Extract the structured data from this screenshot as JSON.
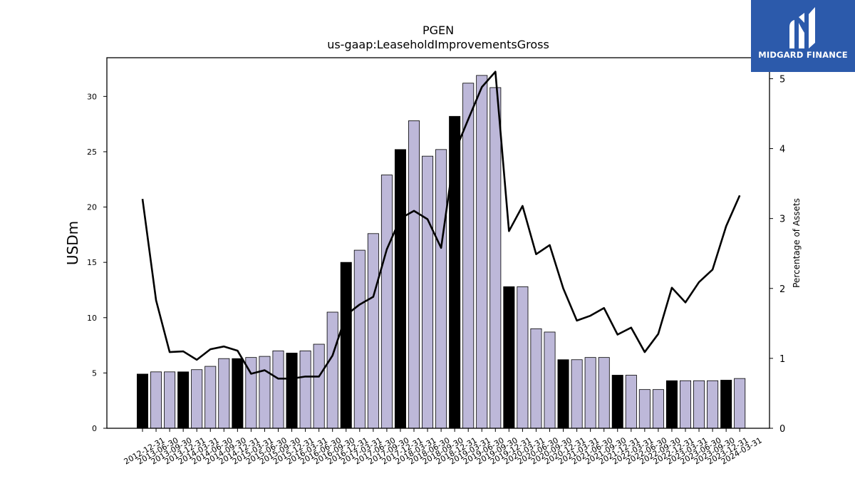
{
  "logo": {
    "name": "MIDGARD FINANCE",
    "colors": {
      "background": "#2c5aab",
      "foreground": "#ffffff"
    }
  },
  "chart_data": {
    "type": "bar",
    "title": "PGEN",
    "subtitle": "us-gaap:LeaseholdImprovementsGross",
    "ylabel": "USDm",
    "y2label": "Percentage of Assets",
    "ylim": [
      0,
      33.5
    ],
    "y2lim": [
      0,
      5.3
    ],
    "yticks": [
      0,
      5,
      10,
      15,
      20,
      25,
      30
    ],
    "y2ticks": [
      0,
      1,
      2,
      3,
      4,
      5
    ],
    "categories": [
      "2012-12-31",
      "2013-06-30",
      "2013-09-30",
      "2013-12-31",
      "2014-03-31",
      "2014-06-30",
      "2014-09-30",
      "2014-12-31",
      "2015-03-31",
      "2015-06-30",
      "2015-09-30",
      "2015-12-31",
      "2016-03-31",
      "2016-06-30",
      "2016-09-30",
      "2016-12-31",
      "2017-03-31",
      "2017-06-30",
      "2017-09-30",
      "2017-12-31",
      "2018-03-31",
      "2018-06-30",
      "2018-09-30",
      "2018-12-31",
      "2019-03-31",
      "2019-06-30",
      "2019-09-30",
      "2019-12-31",
      "2020-03-31",
      "2020-06-30",
      "2020-09-30",
      "2020-12-31",
      "2021-03-31",
      "2021-06-30",
      "2021-09-30",
      "2021-12-31",
      "2022-03-31",
      "2022-06-30",
      "2022-09-30",
      "2022-12-31",
      "2023-03-31",
      "2023-06-30",
      "2023-09-30",
      "2023-12-31",
      "2024-03-31"
    ],
    "series": [
      {
        "type": "bar",
        "axis": "left",
        "values": [
          4.9,
          5.1,
          5.1,
          5.1,
          5.3,
          5.6,
          6.3,
          6.3,
          6.4,
          6.5,
          7.0,
          6.8,
          7.0,
          7.6,
          10.5,
          15.0,
          16.1,
          17.6,
          22.9,
          25.2,
          27.8,
          24.6,
          25.2,
          28.2,
          31.2,
          31.9,
          30.8,
          12.8,
          12.8,
          9.0,
          8.7,
          6.2,
          6.2,
          6.4,
          6.4,
          4.8,
          4.8,
          3.5,
          3.5,
          4.3,
          4.3,
          4.3,
          4.3,
          4.35,
          4.5
        ],
        "highlight": [
          true,
          false,
          false,
          true,
          false,
          false,
          false,
          true,
          false,
          false,
          false,
          true,
          false,
          false,
          false,
          true,
          false,
          false,
          false,
          true,
          false,
          false,
          false,
          true,
          false,
          false,
          false,
          true,
          false,
          false,
          false,
          true,
          false,
          false,
          false,
          true,
          false,
          false,
          false,
          true,
          false,
          false,
          false,
          true,
          false
        ]
      },
      {
        "type": "line",
        "axis": "right",
        "values": [
          3.28,
          1.83,
          1.09,
          1.1,
          0.98,
          1.13,
          1.17,
          1.11,
          0.78,
          0.83,
          0.71,
          0.71,
          0.74,
          0.74,
          1.04,
          1.62,
          1.77,
          1.88,
          2.56,
          3.0,
          3.11,
          2.99,
          2.58,
          3.95,
          4.42,
          4.88,
          5.1,
          2.82,
          3.18,
          2.49,
          2.62,
          2.0,
          1.54,
          1.61,
          1.72,
          1.34,
          1.44,
          1.09,
          1.35,
          2.01,
          1.8,
          2.09,
          2.27,
          2.89,
          3.33
        ]
      }
    ],
    "colors": {
      "bar": "#bdb8d9",
      "bar_highlight": "#000000",
      "line": "#000000"
    },
    "grid": false,
    "legend": "none"
  }
}
